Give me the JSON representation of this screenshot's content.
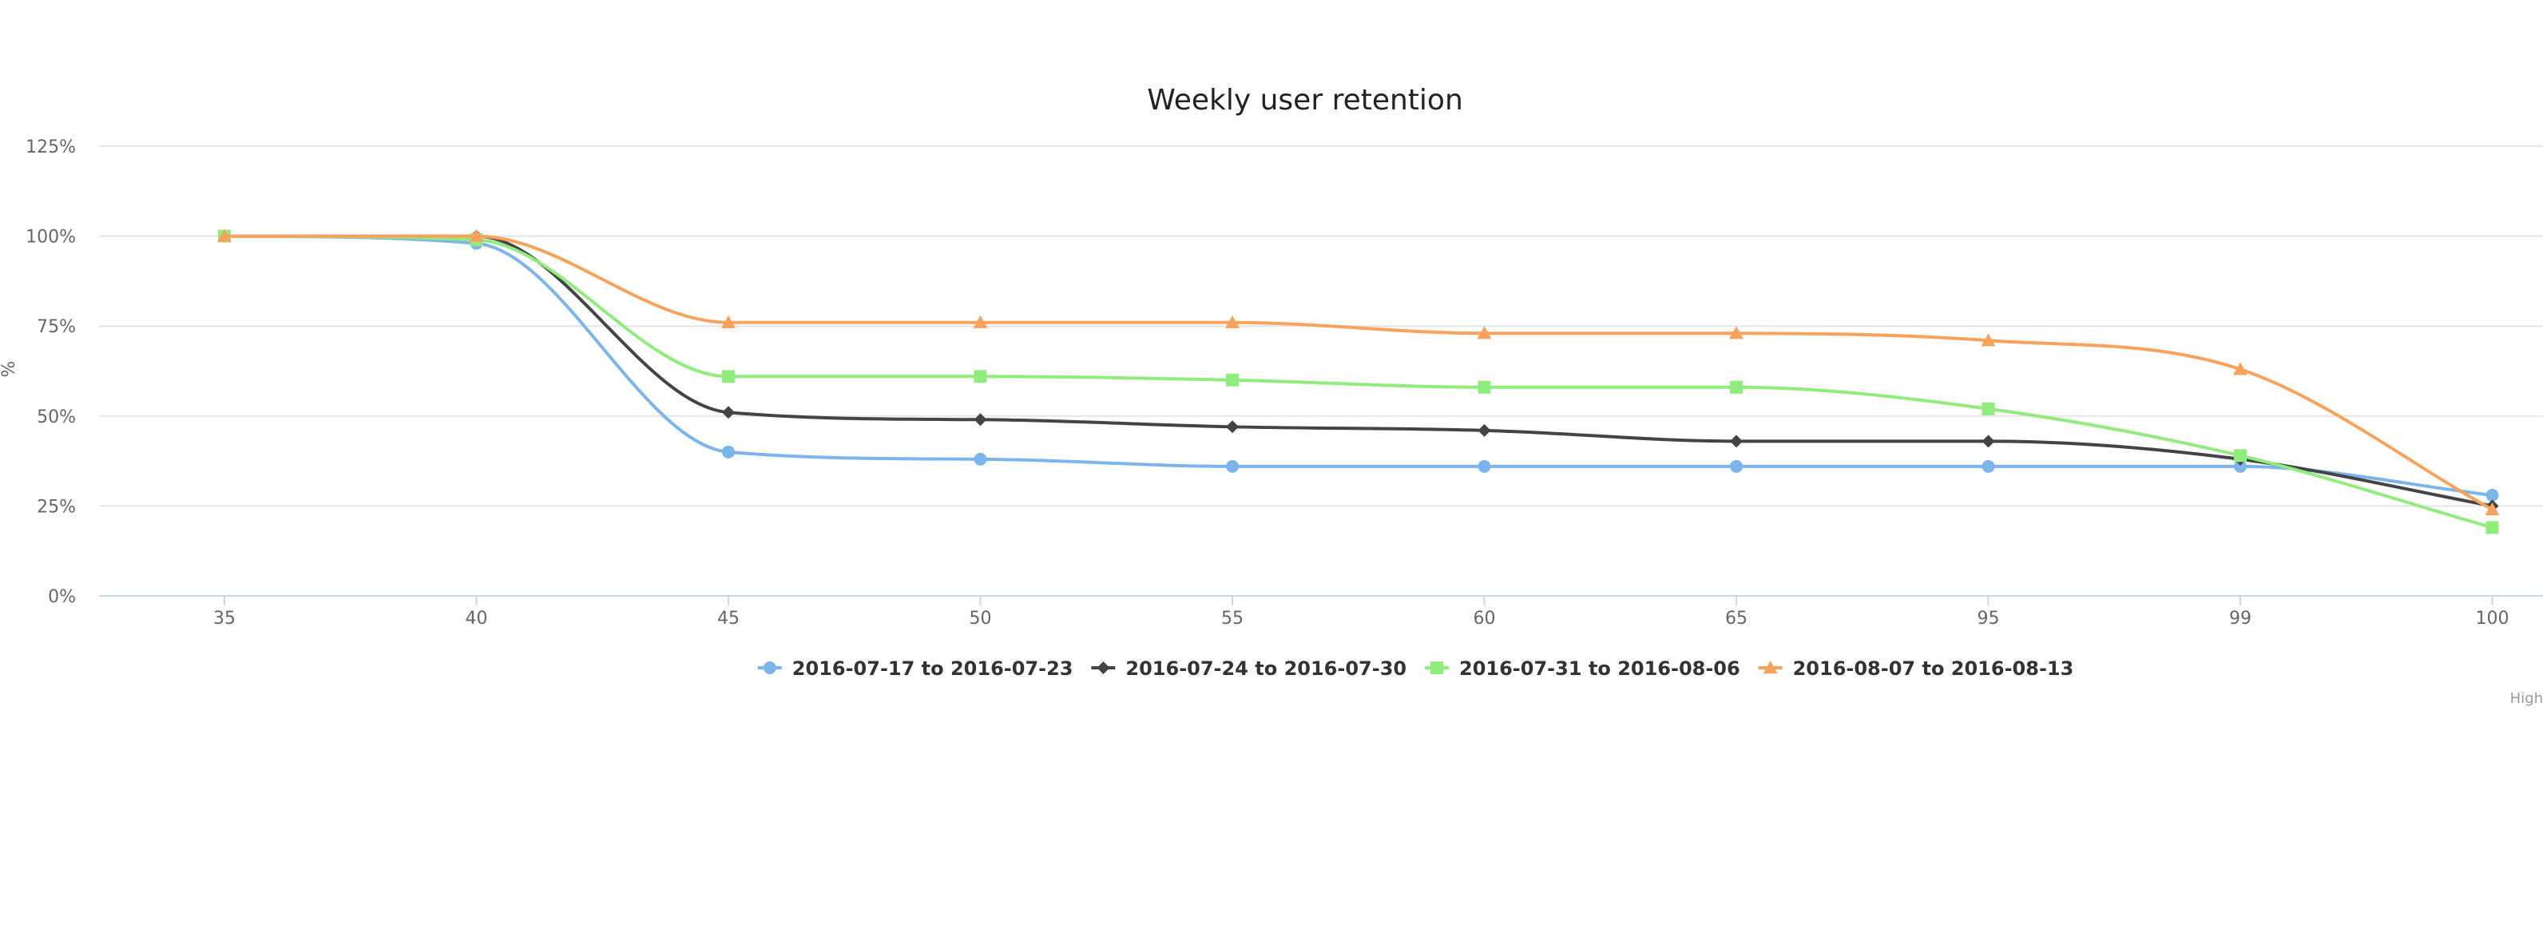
{
  "chart_data": {
    "type": "line",
    "title": "Weekly user retention",
    "ylabel": "%",
    "xlabel": "",
    "categories": [
      "35",
      "40",
      "45",
      "50",
      "55",
      "60",
      "65",
      "95",
      "99",
      "100"
    ],
    "y_ticks": [
      "0%",
      "25%",
      "50%",
      "75%",
      "100%",
      "125%"
    ],
    "ylim": [
      0,
      125
    ],
    "grid": true,
    "legend_position": "bottom-center",
    "series": [
      {
        "name": "2016-07-17 to 2016-07-23",
        "color": "#7cb5ec",
        "marker": "circle",
        "values": [
          100,
          98,
          40,
          38,
          36,
          36,
          36,
          36,
          36,
          28
        ]
      },
      {
        "name": "2016-07-24 to 2016-07-30",
        "color": "#434348",
        "marker": "diamond",
        "values": [
          100,
          100,
          51,
          49,
          47,
          46,
          43,
          43,
          38,
          25
        ]
      },
      {
        "name": "2016-07-31 to 2016-08-06",
        "color": "#90ed7d",
        "marker": "square",
        "values": [
          100,
          99,
          61,
          61,
          60,
          58,
          58,
          52,
          39,
          19
        ]
      },
      {
        "name": "2016-08-07 to 2016-08-13",
        "color": "#f7a35c",
        "marker": "triangle",
        "values": [
          100,
          100,
          76,
          76,
          76,
          73,
          73,
          71,
          63,
          24
        ]
      }
    ],
    "credits": "High"
  }
}
